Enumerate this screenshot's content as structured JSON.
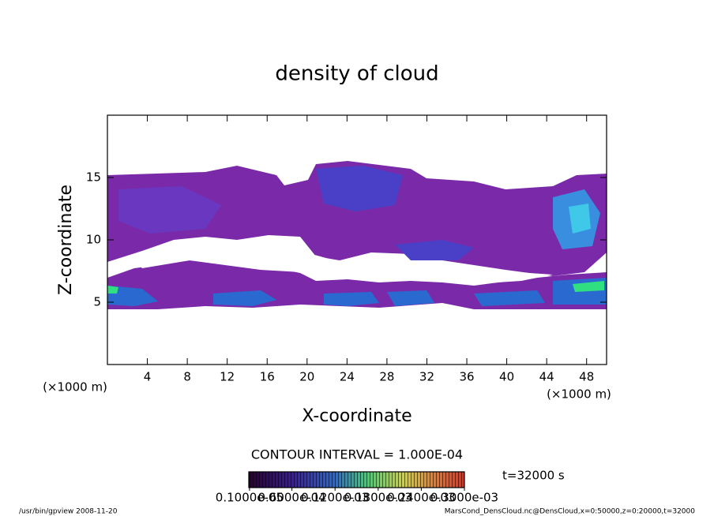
{
  "chart_data": {
    "type": "contour",
    "title": "density of cloud",
    "x_label": "X-coordinate",
    "y_label": "Z-coordinate",
    "x_unit": "(×1000 m)",
    "y_unit": "(×1000 m)",
    "xlim": [
      0,
      50
    ],
    "xticks": [
      4,
      8,
      12,
      16,
      20,
      24,
      28,
      32,
      36,
      40,
      44,
      48
    ],
    "ylim": [
      0,
      20
    ],
    "yticks": [
      5,
      10,
      15
    ],
    "contour_interval": "CONTOUR INTERVAL = 1.000E-04",
    "time": "t=32000 s",
    "colorbar": {
      "lim": [
        0,
        0.0003
      ],
      "ticks": [
        {
          "value": 1e-06,
          "label": "0.1000e-05"
        },
        {
          "value": 6e-05,
          "label": "0.6000e-04"
        },
        {
          "value": 0.00012,
          "label": "0.1200e-03"
        },
        {
          "value": 0.00018,
          "label": "0.1800e-03"
        },
        {
          "value": 0.00024,
          "label": "0.2400e-03"
        },
        {
          "value": 0.0003,
          "label": "0.3000e-03"
        }
      ]
    },
    "footer_left": "/usr/bin/gpview  2008-11-20",
    "footer_right": "MarsCond_DensCloud.nc@DensCloud,x=0:50000,z=0:20000,t=32000"
  }
}
